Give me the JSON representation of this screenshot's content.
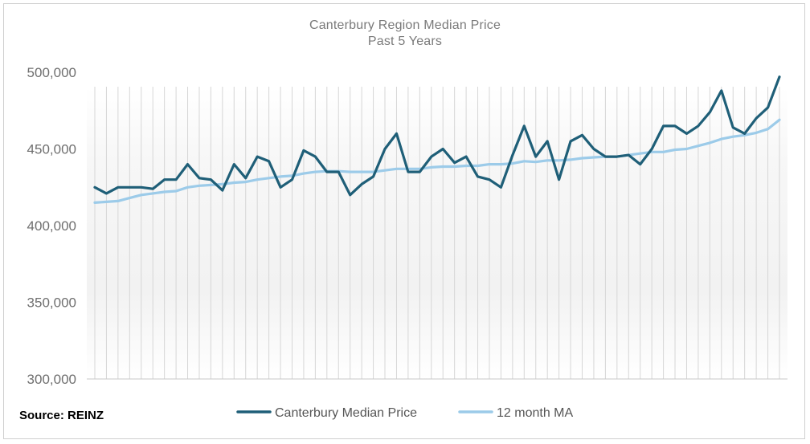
{
  "chart_data": {
    "type": "line",
    "title": "Canterbury Region Median Price",
    "subtitle": "Past 5 Years",
    "xlabel": "",
    "ylabel": "",
    "ylim": [
      300000,
      500000
    ],
    "yticks": [
      300000,
      350000,
      400000,
      450000,
      500000
    ],
    "ytick_labels": [
      "300,000",
      "350,000",
      "400,000",
      "450,000",
      "500,000"
    ],
    "x": [
      1,
      2,
      3,
      4,
      5,
      6,
      7,
      8,
      9,
      10,
      11,
      12,
      13,
      14,
      15,
      16,
      17,
      18,
      19,
      20,
      21,
      22,
      23,
      24,
      25,
      26,
      27,
      28,
      29,
      30,
      31,
      32,
      33,
      34,
      35,
      36,
      37,
      38,
      39,
      40,
      41,
      42,
      43,
      44,
      45,
      46,
      47,
      48,
      49,
      50,
      51,
      52,
      53,
      54,
      55,
      56,
      57,
      58,
      59,
      60
    ],
    "series": [
      {
        "name": "Canterbury Median Price",
        "color": "#1f5f78",
        "values": [
          425000,
          421000,
          425000,
          425000,
          425000,
          424000,
          430000,
          430000,
          440000,
          431000,
          430000,
          423000,
          440000,
          431000,
          445000,
          442000,
          425000,
          430000,
          449000,
          445000,
          435000,
          435000,
          420000,
          427000,
          432000,
          450000,
          460000,
          435000,
          435000,
          445000,
          450000,
          441000,
          445000,
          432000,
          430000,
          425000,
          446000,
          465000,
          445000,
          455000,
          430000,
          455000,
          459000,
          450000,
          445000,
          445000,
          446000,
          440000,
          450000,
          465000,
          465000,
          460000,
          465000,
          474000,
          488000,
          464000,
          460000,
          470000,
          477000,
          497000
        ]
      },
      {
        "name": "12 month MA",
        "color": "#9ccbe9",
        "values": [
          415000,
          415500,
          416000,
          418000,
          420000,
          421000,
          422000,
          422500,
          425000,
          426000,
          426500,
          427000,
          428000,
          428500,
          430000,
          431000,
          432000,
          432500,
          434000,
          435000,
          435500,
          435500,
          435000,
          435000,
          435000,
          436000,
          437000,
          437000,
          437000,
          438000,
          438500,
          438500,
          439000,
          439000,
          440000,
          440000,
          440500,
          442000,
          441500,
          442500,
          442500,
          443000,
          444000,
          444500,
          445000,
          445000,
          446000,
          447000,
          448000,
          448000,
          449500,
          450000,
          452000,
          454000,
          456500,
          458000,
          459000,
          460500,
          463000,
          469000
        ]
      }
    ],
    "legend": {
      "position": "bottom-center"
    }
  },
  "source_label": "Source: REINZ"
}
